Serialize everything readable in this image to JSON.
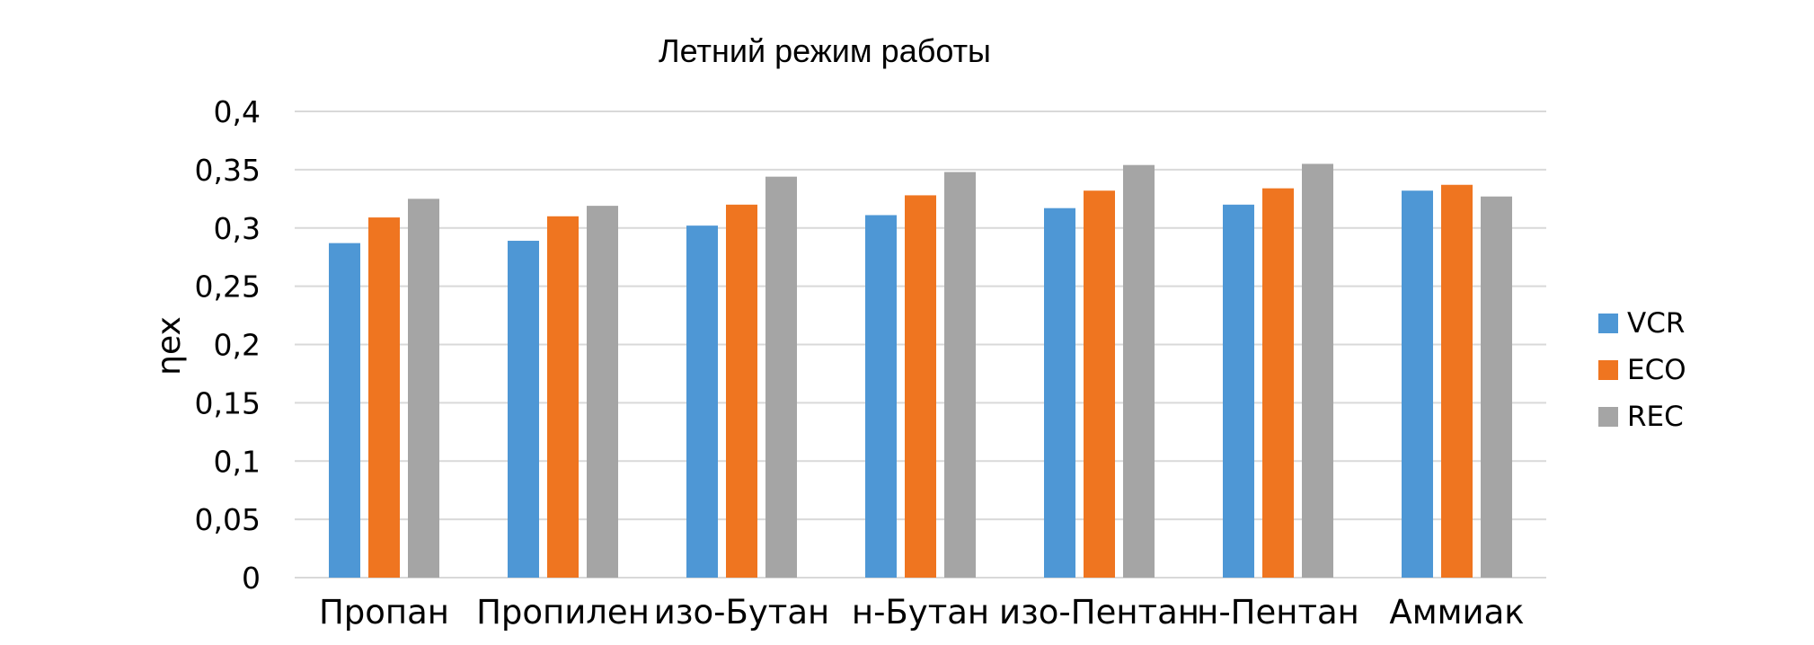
{
  "chart_data": {
    "type": "bar",
    "title": "Летний режим работы",
    "ylabel": "ηex",
    "xlabel": "",
    "ylim": [
      0,
      0.4
    ],
    "yticks": [
      0,
      0.05,
      0.1,
      0.15,
      0.2,
      0.25,
      0.3,
      0.35,
      0.4
    ],
    "ytick_labels": [
      "0",
      "0,05",
      "0,1",
      "0,15",
      "0,2",
      "0,25",
      "0,3",
      "0,35",
      "0,4"
    ],
    "grid": true,
    "legend_position": "right",
    "categories": [
      "Пропан",
      "Пропилен",
      "изо-Бутан",
      "н-Бутан",
      "изо-Пентан",
      "н-Пентан",
      "Аммиак"
    ],
    "series": [
      {
        "name": "VCR",
        "color": "#4e97d5",
        "values": [
          0.287,
          0.289,
          0.302,
          0.311,
          0.317,
          0.32,
          0.332
        ]
      },
      {
        "name": "ECO",
        "color": "#ef7520",
        "values": [
          0.309,
          0.31,
          0.32,
          0.328,
          0.332,
          0.334,
          0.337
        ]
      },
      {
        "name": "REC",
        "color": "#a5a5a5",
        "values": [
          0.325,
          0.319,
          0.344,
          0.348,
          0.354,
          0.355,
          0.327
        ]
      }
    ]
  }
}
